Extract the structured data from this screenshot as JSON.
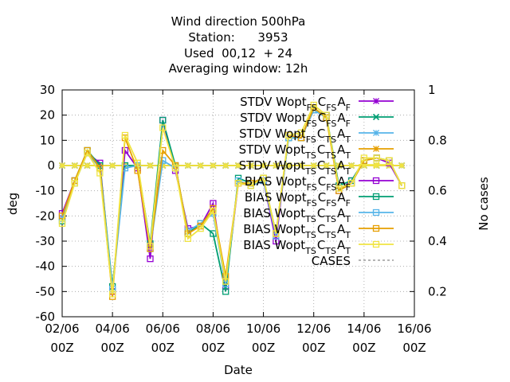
{
  "chart_data": {
    "type": "line",
    "title": [
      "Wind direction 500hPa",
      "Station:      3953",
      "Used  00,12  + 24",
      "Averaging window: 12h"
    ],
    "xlabel": "Date",
    "ylabel": "deg",
    "y2label": "No cases",
    "ylim": [
      -60,
      30
    ],
    "y2lim": [
      0.1,
      1.0
    ],
    "xlim": [
      0,
      28
    ],
    "x_ticks": [
      {
        "x": 0,
        "line1": "02/06",
        "line2": "00Z"
      },
      {
        "x": 4,
        "line1": "04/06",
        "line2": "00Z"
      },
      {
        "x": 8,
        "line1": "06/06",
        "line2": "00Z"
      },
      {
        "x": 12,
        "line1": "08/06",
        "line2": "00Z"
      },
      {
        "x": 16,
        "line1": "10/06",
        "line2": "00Z"
      },
      {
        "x": 20,
        "line1": "12/06",
        "line2": "00Z"
      },
      {
        "x": 24,
        "line1": "14/06",
        "line2": "00Z"
      },
      {
        "x": 28,
        "line1": "16/06",
        "line2": "00Z"
      }
    ],
    "y_ticks": [
      30,
      20,
      10,
      0,
      -10,
      -20,
      -30,
      -40,
      -50,
      -60
    ],
    "y2_ticks": [
      {
        "v": 1.0,
        "label": "1"
      },
      {
        "v": 0.8,
        "label": "0.8"
      },
      {
        "v": 0.6,
        "label": "0.6"
      },
      {
        "v": 0.4,
        "label": "0.4"
      },
      {
        "v": 0.2,
        "label": "0.2"
      }
    ],
    "legend_position": "top-right",
    "grid": true,
    "series": [
      {
        "name": "STDV Wopt",
        "sub": [
          "FS",
          "FS",
          "F"
        ],
        "color": "#9400d3",
        "marker": "star",
        "axis": "y",
        "points": [
          [
            0,
            0
          ],
          [
            1,
            0
          ],
          [
            2,
            0
          ],
          [
            3,
            0
          ],
          [
            4,
            0
          ],
          [
            5,
            0
          ],
          [
            6,
            0
          ],
          [
            7,
            0
          ],
          [
            8,
            0
          ],
          [
            9,
            0
          ],
          [
            10,
            0
          ],
          [
            11,
            0
          ],
          [
            12,
            0
          ],
          [
            13,
            0
          ],
          [
            14,
            0
          ],
          [
            15,
            0
          ],
          [
            16,
            0
          ],
          [
            17,
            0
          ],
          [
            18,
            0
          ],
          [
            19,
            0
          ],
          [
            20,
            0
          ],
          [
            21,
            0
          ],
          [
            22,
            0
          ],
          [
            23,
            0
          ],
          [
            24,
            0
          ],
          [
            25,
            0
          ],
          [
            26,
            0
          ],
          [
            27,
            0
          ]
        ]
      },
      {
        "name": "STDV Wopt",
        "sub": [
          "FS",
          "FS",
          "F"
        ],
        "color": "#009e73",
        "marker": "x",
        "axis": "y",
        "points": [
          [
            0,
            0
          ],
          [
            1,
            0
          ],
          [
            2,
            0
          ],
          [
            3,
            0
          ],
          [
            4,
            0
          ],
          [
            5,
            0
          ],
          [
            6,
            0
          ],
          [
            7,
            0
          ],
          [
            8,
            0
          ],
          [
            9,
            0
          ],
          [
            10,
            0
          ],
          [
            11,
            0
          ],
          [
            12,
            0
          ],
          [
            13,
            0
          ],
          [
            14,
            0
          ],
          [
            15,
            0
          ],
          [
            16,
            0
          ],
          [
            17,
            0
          ],
          [
            18,
            0
          ],
          [
            19,
            0
          ],
          [
            20,
            0
          ],
          [
            21,
            0
          ],
          [
            22,
            0
          ],
          [
            23,
            0
          ],
          [
            24,
            0
          ],
          [
            25,
            0
          ],
          [
            26,
            0
          ],
          [
            27,
            0
          ]
        ]
      },
      {
        "name": "STDV Wopt",
        "sub": [
          "FS",
          "TS",
          "T"
        ],
        "color": "#56b4e9",
        "marker": "star",
        "axis": "y",
        "points": [
          [
            0,
            0
          ],
          [
            1,
            0
          ],
          [
            2,
            0
          ],
          [
            3,
            0
          ],
          [
            4,
            0
          ],
          [
            5,
            0
          ],
          [
            6,
            0
          ],
          [
            7,
            0
          ],
          [
            8,
            0
          ],
          [
            9,
            0
          ],
          [
            10,
            0
          ],
          [
            11,
            0
          ],
          [
            12,
            0
          ],
          [
            13,
            0
          ],
          [
            14,
            0
          ],
          [
            15,
            0
          ],
          [
            16,
            0
          ],
          [
            17,
            0
          ],
          [
            18,
            0
          ],
          [
            19,
            0
          ],
          [
            20,
            0
          ],
          [
            21,
            0
          ],
          [
            22,
            0
          ],
          [
            23,
            0
          ],
          [
            24,
            0
          ],
          [
            25,
            0
          ],
          [
            26,
            0
          ],
          [
            27,
            0
          ]
        ]
      },
      {
        "name": "STDV Wopt",
        "sub": [
          "TS",
          "TS",
          "T"
        ],
        "color": "#e69f00",
        "marker": "star",
        "axis": "y",
        "points": [
          [
            0,
            0
          ],
          [
            1,
            0
          ],
          [
            2,
            0
          ],
          [
            3,
            0
          ],
          [
            4,
            0
          ],
          [
            5,
            0
          ],
          [
            6,
            0
          ],
          [
            7,
            0
          ],
          [
            8,
            0
          ],
          [
            9,
            0
          ],
          [
            10,
            0
          ],
          [
            11,
            0
          ],
          [
            12,
            0
          ],
          [
            13,
            0
          ],
          [
            14,
            0
          ],
          [
            15,
            0
          ],
          [
            16,
            0
          ],
          [
            17,
            0
          ],
          [
            18,
            0
          ],
          [
            19,
            0
          ],
          [
            20,
            0
          ],
          [
            21,
            0
          ],
          [
            22,
            0
          ],
          [
            23,
            0
          ],
          [
            24,
            0
          ],
          [
            25,
            0
          ],
          [
            26,
            0
          ],
          [
            27,
            0
          ]
        ]
      },
      {
        "name": "STDV Wopt",
        "sub": [
          "TS",
          "TS",
          "T"
        ],
        "color": "#f0e442",
        "marker": "star",
        "axis": "y",
        "points": [
          [
            0,
            0
          ],
          [
            1,
            0
          ],
          [
            2,
            0
          ],
          [
            3,
            0
          ],
          [
            4,
            0
          ],
          [
            5,
            0
          ],
          [
            6,
            0
          ],
          [
            7,
            0
          ],
          [
            8,
            0
          ],
          [
            9,
            0
          ],
          [
            10,
            0
          ],
          [
            11,
            0
          ],
          [
            12,
            0
          ],
          [
            13,
            0
          ],
          [
            14,
            0
          ],
          [
            15,
            0
          ],
          [
            16,
            0
          ],
          [
            17,
            0
          ],
          [
            18,
            0
          ],
          [
            19,
            0
          ],
          [
            20,
            0
          ],
          [
            21,
            0
          ],
          [
            22,
            0
          ],
          [
            23,
            0
          ],
          [
            24,
            0
          ],
          [
            25,
            0
          ],
          [
            26,
            0
          ],
          [
            27,
            0
          ]
        ]
      },
      {
        "name": "BIAS Wopt",
        "sub": [
          "FS",
          "FS",
          "F"
        ],
        "color": "#9400d3",
        "marker": "square",
        "axis": "y",
        "points": [
          [
            0,
            -19
          ],
          [
            1,
            -6
          ],
          [
            2,
            5
          ],
          [
            3,
            1
          ],
          [
            4,
            -50
          ],
          [
            5,
            6
          ],
          [
            6,
            -1
          ],
          [
            7,
            -37
          ],
          [
            8,
            18
          ],
          [
            9,
            -2
          ],
          [
            10,
            -25
          ],
          [
            11,
            -24
          ],
          [
            12,
            -15
          ],
          [
            13,
            -48
          ],
          [
            14,
            -7
          ],
          [
            15,
            -8
          ],
          [
            16,
            -6
          ],
          [
            17,
            -30
          ],
          [
            18,
            12
          ],
          [
            19,
            11
          ],
          [
            20,
            22
          ],
          [
            21,
            20
          ],
          [
            22,
            -10
          ],
          [
            23,
            -6
          ],
          [
            24,
            2
          ],
          [
            25,
            3
          ],
          [
            26,
            1
          ],
          [
            27,
            -8
          ]
        ]
      },
      {
        "name": "BIAS Wopt",
        "sub": [
          "FS",
          "FS",
          "F"
        ],
        "color": "#009e73",
        "marker": "square",
        "axis": "y",
        "points": [
          [
            0,
            -22
          ],
          [
            1,
            -6
          ],
          [
            2,
            6
          ],
          [
            3,
            0
          ],
          [
            4,
            -48
          ],
          [
            5,
            0
          ],
          [
            6,
            0
          ],
          [
            7,
            -31
          ],
          [
            8,
            18
          ],
          [
            9,
            0
          ],
          [
            10,
            -27
          ],
          [
            11,
            -23
          ],
          [
            12,
            -27
          ],
          [
            13,
            -50
          ],
          [
            14,
            -5
          ],
          [
            15,
            -7
          ],
          [
            16,
            -5
          ],
          [
            17,
            -27
          ],
          [
            18,
            11
          ],
          [
            19,
            11
          ],
          [
            20,
            22
          ],
          [
            21,
            20
          ],
          [
            22,
            -8
          ],
          [
            23,
            -6
          ],
          [
            24,
            2
          ],
          [
            25,
            3
          ],
          [
            26,
            2
          ],
          [
            27,
            -8
          ]
        ]
      },
      {
        "name": "BIAS Wopt",
        "sub": [
          "TS",
          "TS",
          "T"
        ],
        "color": "#56b4e9",
        "marker": "square",
        "axis": "y",
        "points": [
          [
            0,
            -21
          ],
          [
            1,
            -7
          ],
          [
            2,
            5
          ],
          [
            3,
            -1
          ],
          [
            4,
            -49
          ],
          [
            5,
            -1
          ],
          [
            6,
            0
          ],
          [
            7,
            -33
          ],
          [
            8,
            2
          ],
          [
            9,
            -1
          ],
          [
            10,
            -26
          ],
          [
            11,
            -23
          ],
          [
            12,
            -19
          ],
          [
            13,
            -47
          ],
          [
            14,
            -6
          ],
          [
            15,
            -8
          ],
          [
            16,
            -6
          ],
          [
            17,
            -28
          ],
          [
            18,
            11
          ],
          [
            19,
            11
          ],
          [
            20,
            22
          ],
          [
            21,
            19
          ],
          [
            22,
            -9
          ],
          [
            23,
            -7
          ],
          [
            24,
            2
          ],
          [
            25,
            3
          ],
          [
            26,
            2
          ],
          [
            27,
            -8
          ]
        ]
      },
      {
        "name": "BIAS Wopt",
        "sub": [
          "TS",
          "TS",
          "T"
        ],
        "color": "#e69f00",
        "marker": "square",
        "axis": "y",
        "points": [
          [
            0,
            -20
          ],
          [
            1,
            -6
          ],
          [
            2,
            6
          ],
          [
            3,
            -1
          ],
          [
            4,
            -52
          ],
          [
            5,
            11
          ],
          [
            6,
            -2
          ],
          [
            7,
            -33
          ],
          [
            8,
            6
          ],
          [
            9,
            0
          ],
          [
            10,
            -27
          ],
          [
            11,
            -24
          ],
          [
            12,
            -17
          ],
          [
            13,
            -44
          ],
          [
            14,
            -7
          ],
          [
            15,
            -7
          ],
          [
            16,
            -5
          ],
          [
            17,
            -27
          ],
          [
            18,
            12
          ],
          [
            19,
            11
          ],
          [
            20,
            23
          ],
          [
            21,
            19
          ],
          [
            22,
            -10
          ],
          [
            23,
            -7
          ],
          [
            24,
            2
          ],
          [
            25,
            3
          ],
          [
            26,
            2
          ],
          [
            27,
            -8
          ]
        ]
      },
      {
        "name": "BIAS Wopt",
        "sub": [
          "TS",
          "TS",
          "T"
        ],
        "color": "#f0e442",
        "marker": "square",
        "axis": "y",
        "points": [
          [
            0,
            -23
          ],
          [
            1,
            -7
          ],
          [
            2,
            5
          ],
          [
            3,
            -3
          ],
          [
            4,
            -51
          ],
          [
            5,
            12
          ],
          [
            6,
            1
          ],
          [
            7,
            -32
          ],
          [
            8,
            15
          ],
          [
            9,
            -1
          ],
          [
            10,
            -29
          ],
          [
            11,
            -25
          ],
          [
            12,
            -18
          ],
          [
            13,
            -46
          ],
          [
            14,
            -7
          ],
          [
            15,
            -8
          ],
          [
            16,
            -5
          ],
          [
            17,
            -27
          ],
          [
            18,
            12
          ],
          [
            19,
            13
          ],
          [
            20,
            24
          ],
          [
            21,
            20
          ],
          [
            22,
            -9
          ],
          [
            23,
            -7
          ],
          [
            24,
            3
          ],
          [
            25,
            3
          ],
          [
            26,
            2
          ],
          [
            27,
            -8
          ]
        ]
      },
      {
        "name": "CASES",
        "sub": [],
        "color": "#888888",
        "marker": "none",
        "axis": "y2",
        "dashed": true,
        "points": []
      }
    ]
  }
}
